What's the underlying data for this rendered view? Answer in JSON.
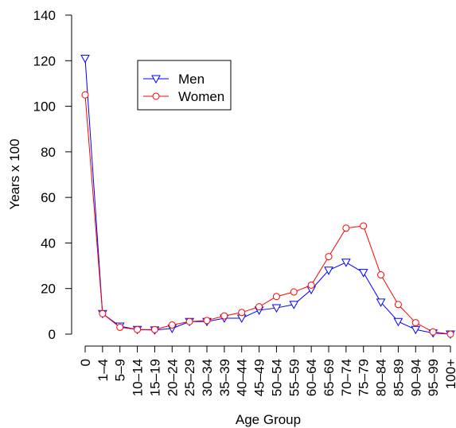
{
  "chart_data": {
    "type": "line",
    "xlabel": "Age Group",
    "ylabel": "Years x 100",
    "ylim": [
      0,
      140
    ],
    "yticks": [
      0,
      20,
      40,
      60,
      80,
      100,
      120,
      140
    ],
    "categories": [
      "0",
      "1–4",
      "5–9",
      "10–14",
      "15–19",
      "20–24",
      "25–29",
      "30–34",
      "35–39",
      "40–44",
      "45–49",
      "50–54",
      "55–59",
      "60–64",
      "65–69",
      "70–74",
      "75–79",
      "80–84",
      "85–89",
      "90–94",
      "95–99",
      "100+"
    ],
    "series": [
      {
        "name": "Men",
        "color": "#0000ff",
        "marker": "triangle-down",
        "values": [
          121,
          9,
          3.5,
          2,
          1.8,
          2.5,
          5.5,
          5.5,
          7,
          7,
          10.5,
          11.5,
          13,
          19.5,
          28,
          31.5,
          27,
          14,
          5.5,
          2,
          0.5,
          0
        ]
      },
      {
        "name": "Women",
        "color": "#ff0000",
        "marker": "circle",
        "values": [
          105,
          9,
          3,
          2,
          2,
          4,
          5.5,
          6,
          8,
          9.5,
          12,
          16.5,
          18.5,
          21.5,
          34,
          46.5,
          47.5,
          26,
          13,
          5,
          1,
          0
        ]
      }
    ],
    "legend": "top-left"
  }
}
